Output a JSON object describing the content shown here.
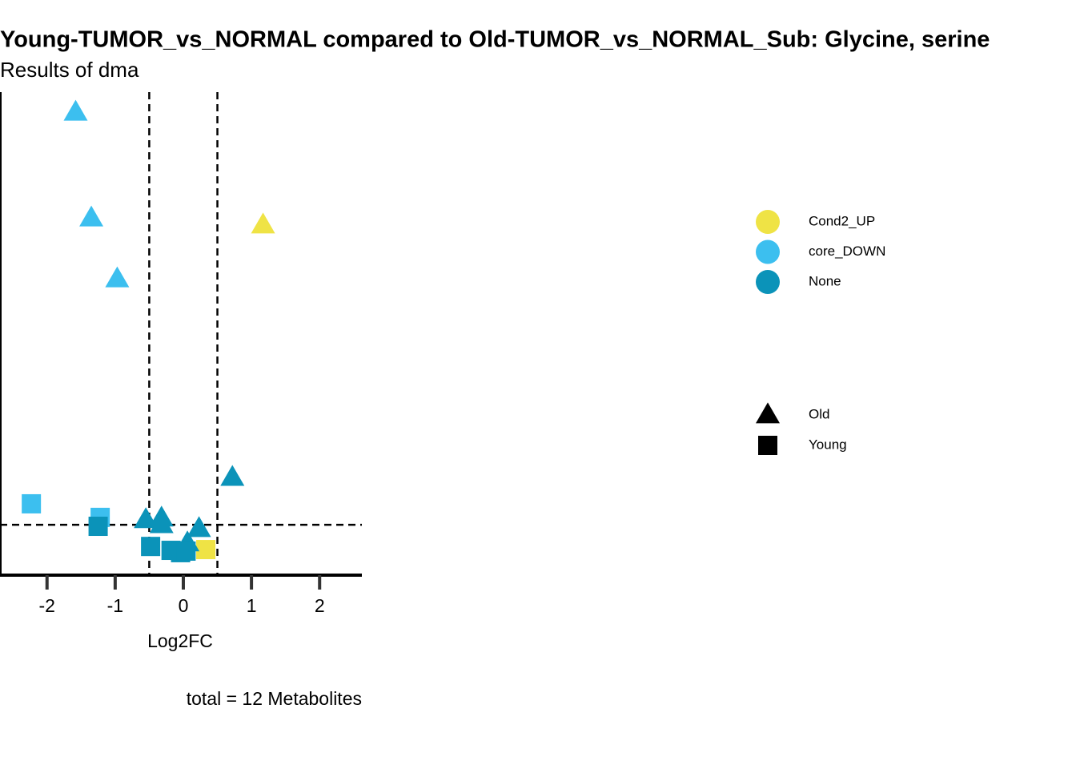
{
  "chart_data": {
    "type": "scatter",
    "title": "Young-TUMOR_vs_NORMAL compared to Old-TUMOR_vs_NORMAL_Sub: Glycine, serine",
    "subtitle": "Results of dma",
    "x_label": "Log2FC",
    "caption": "total = 12 Metabolites",
    "xlim": [
      -2.69,
      2.62
    ],
    "xticks": [
      -2,
      -1,
      0,
      1,
      2
    ],
    "ylim": [
      0,
      12.46
    ],
    "vlines": [
      -0.5,
      0.5
    ],
    "hlines": [
      1.3
    ],
    "series": [
      {
        "name": "Cond2_UP",
        "color": "#efe345",
        "x": [
          1.17,
          0.33
        ],
        "values": [
          9.03,
          0.66
        ],
        "groups": [
          "Old",
          "Young"
        ]
      },
      {
        "name": "core_DOWN",
        "color": "#3cbfef",
        "x": [
          -1.58,
          -1.35,
          -0.97,
          -2.23,
          -1.22
        ],
        "values": [
          11.94,
          9.21,
          7.64,
          1.84,
          1.49
        ],
        "groups": [
          "Old",
          "Old",
          "Old",
          "Young",
          "Young"
        ]
      },
      {
        "name": "None",
        "color": "#0b93b9",
        "x": [
          0.72,
          -0.55,
          -0.32,
          -0.32,
          0.23,
          0.06,
          -1.25,
          -0.48,
          -0.18,
          -0.04,
          0.04
        ],
        "values": [
          2.52,
          1.43,
          1.47,
          1.3,
          1.2,
          0.83,
          1.26,
          0.74,
          0.64,
          0.58,
          0.62
        ],
        "groups": [
          "Old",
          "Old",
          "Old",
          "Old",
          "Old",
          "Old",
          "Young",
          "Young",
          "Young",
          "Young",
          "Young"
        ]
      }
    ],
    "shape_legend": [
      {
        "name": "Old",
        "shape": "triangle"
      },
      {
        "name": "Young",
        "shape": "square"
      }
    ]
  }
}
